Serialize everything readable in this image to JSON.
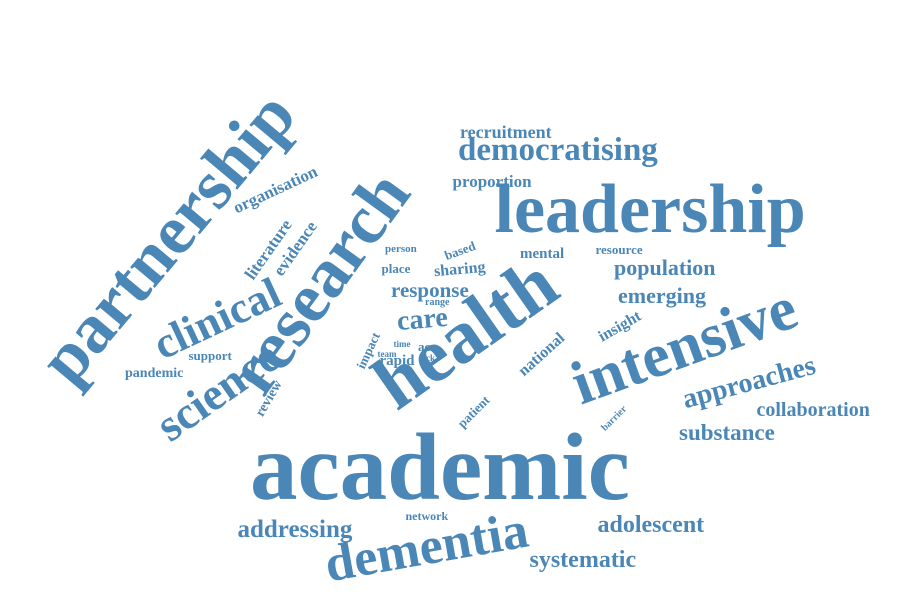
{
  "word_color": "#4a86b6",
  "background": "#ffffff",
  "words": [
    {
      "text": "partnership"
    },
    {
      "text": "research"
    },
    {
      "text": "leadership"
    },
    {
      "text": "academic"
    },
    {
      "text": "intensive"
    },
    {
      "text": "health"
    },
    {
      "text": "dementia"
    },
    {
      "text": "clinical"
    },
    {
      "text": "science"
    },
    {
      "text": "democratising"
    },
    {
      "text": "recruitment"
    },
    {
      "text": "proportion"
    },
    {
      "text": "organisation"
    },
    {
      "text": "literature"
    },
    {
      "text": "evidence"
    },
    {
      "text": "population"
    },
    {
      "text": "emerging"
    },
    {
      "text": "approaches"
    },
    {
      "text": "collaboration"
    },
    {
      "text": "substance"
    },
    {
      "text": "adolescent"
    },
    {
      "text": "systematic"
    },
    {
      "text": "addressing"
    },
    {
      "text": "network"
    },
    {
      "text": "response"
    },
    {
      "text": "care"
    },
    {
      "text": "sharing"
    },
    {
      "text": "place"
    },
    {
      "text": "person"
    },
    {
      "text": "based"
    },
    {
      "text": "mental"
    },
    {
      "text": "resource"
    },
    {
      "text": "range"
    },
    {
      "text": "impact"
    },
    {
      "text": "time"
    },
    {
      "text": "acc"
    },
    {
      "text": "team"
    },
    {
      "text": "lack"
    },
    {
      "text": "rapid"
    },
    {
      "text": "support"
    },
    {
      "text": "pandemic"
    },
    {
      "text": "review"
    },
    {
      "text": "patient"
    },
    {
      "text": "national"
    },
    {
      "text": "insight"
    },
    {
      "text": "barrier"
    }
  ]
}
